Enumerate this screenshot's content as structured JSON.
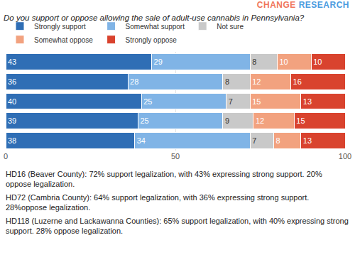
{
  "chart_data": {
    "type": "bar",
    "orientation": "horizontal",
    "stacked": true,
    "source": "CHANGE RESEARCH",
    "title": "Do you support or oppose allowing the sale of adult-use cannabis in Pennsylvania?",
    "categories": [
      null,
      null,
      null,
      null,
      null
    ],
    "series": [
      {
        "name": "Strongly support",
        "color": "#2f6eb5",
        "values": [
          43,
          36,
          40,
          39,
          38
        ]
      },
      {
        "name": "Somewhat support",
        "color": "#80b4e6",
        "values": [
          29,
          28,
          25,
          25,
          34
        ]
      },
      {
        "name": "Not sure",
        "color": "#c9c9c9",
        "values": [
          8,
          8,
          7,
          9,
          7
        ]
      },
      {
        "name": "Somewhat oppose",
        "color": "#f2a27f",
        "values": [
          10,
          12,
          15,
          12,
          8
        ]
      },
      {
        "name": "Strongly oppose",
        "color": "#d9432e",
        "values": [
          10,
          16,
          13,
          15,
          13
        ]
      }
    ],
    "xlim": [
      0,
      100
    ],
    "xticks": [
      0,
      50,
      100
    ],
    "grid": true,
    "legend": "top",
    "data_labels": true,
    "tick_labels": "x",
    "annotations": [
      "HD16 (Beaver County): 72% support legalization, with 43% expressing strong support. 20% oppose legalization.",
      "HD72 (Cambria County): 64% support legalization, with 36% expressing strong support. 28%oppose legalization.",
      "HD118 (Luzerne and Lackawanna Counties): 65% support legalization, with 40% expressing strong support. 28% oppose legalization."
    ]
  }
}
